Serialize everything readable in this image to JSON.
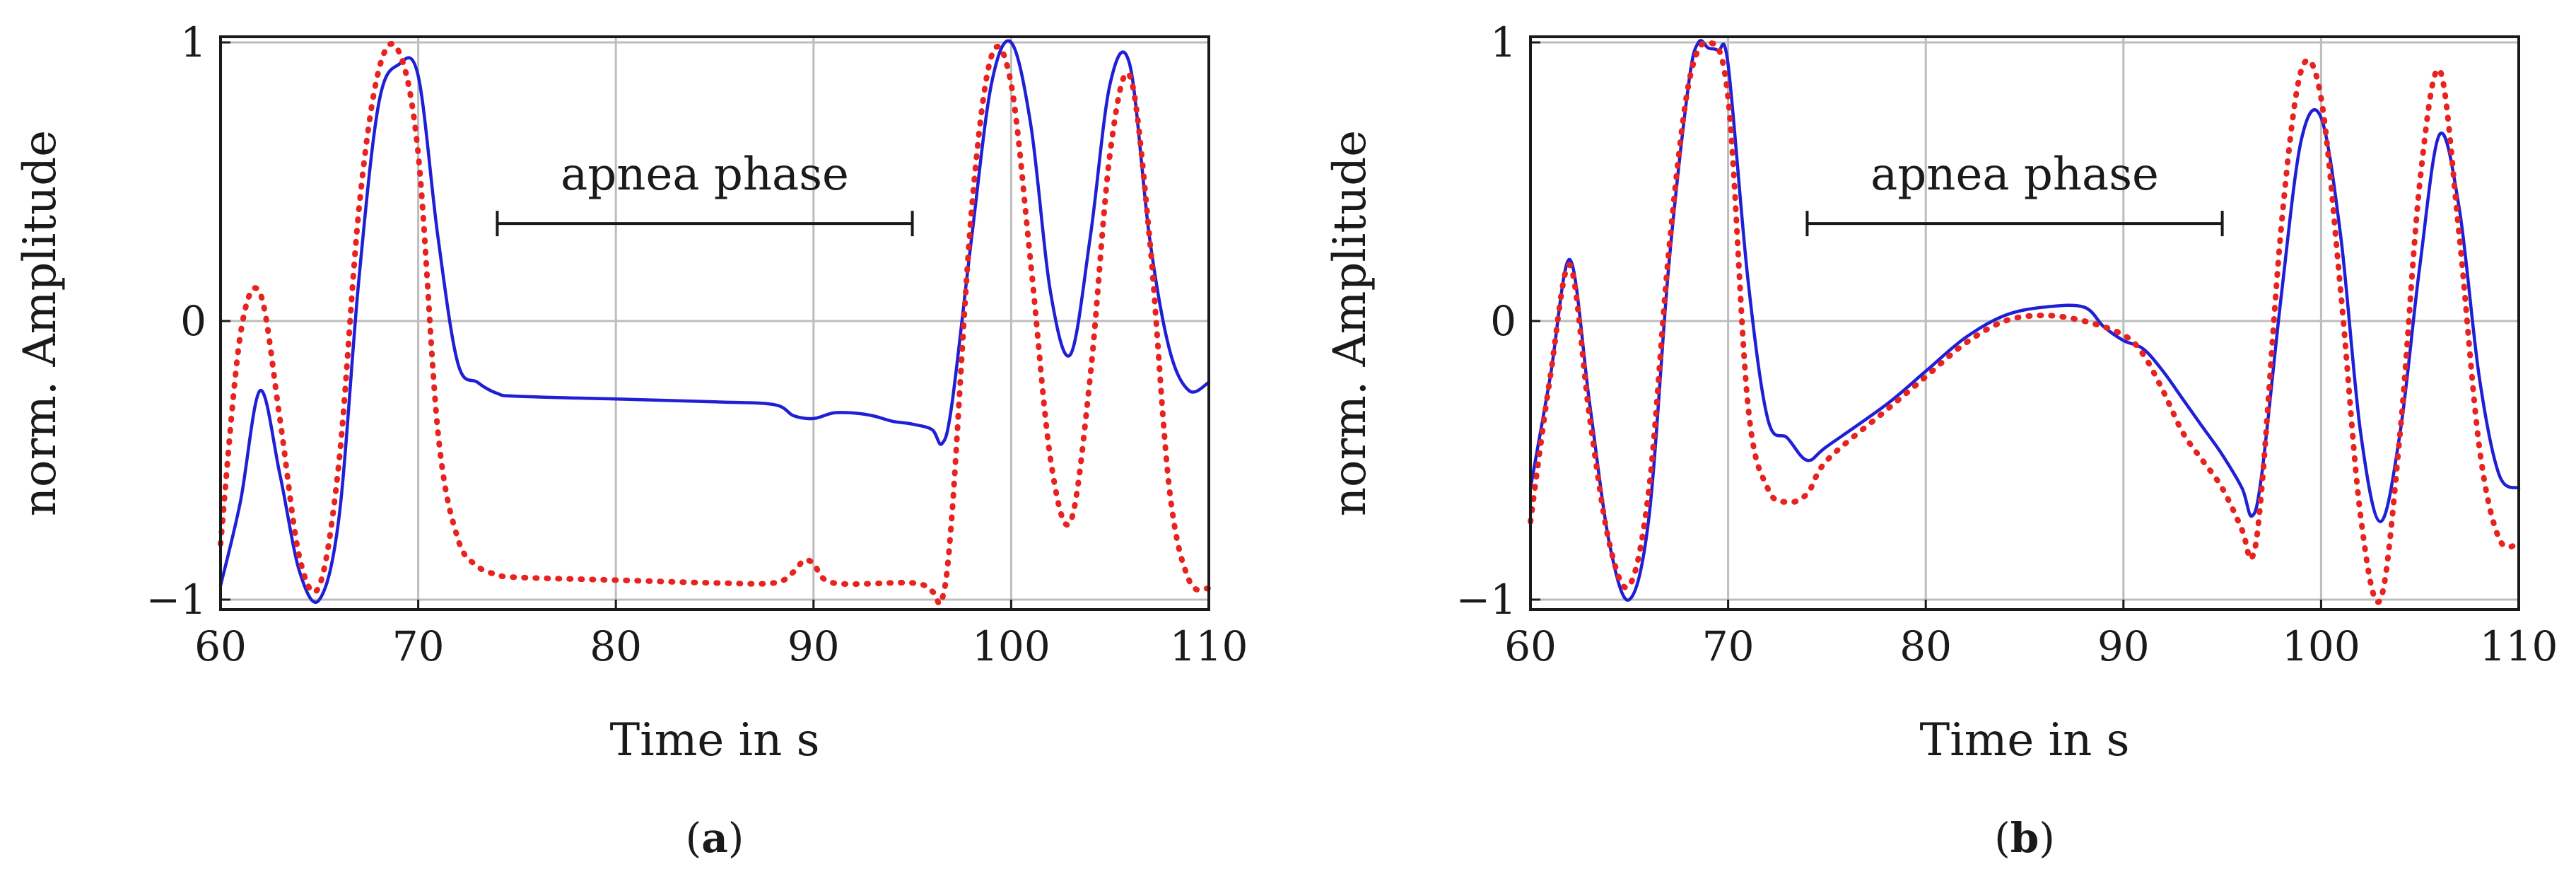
{
  "colors": {
    "series_solid": "#1f1fd6",
    "series_dotted": "#e8231f"
  },
  "chart_data": [
    {
      "type": "line",
      "panel_label": "a",
      "xlabel": "Time in s",
      "ylabel": "norm. Amplitude",
      "xlim": [
        60,
        110
      ],
      "ylim": [
        -1,
        1
      ],
      "xticks": [
        60,
        70,
        80,
        90,
        100,
        110
      ],
      "xtick_labels": [
        "60",
        "70",
        "80",
        "90",
        "100",
        "110"
      ],
      "yticks": [
        -1,
        0,
        1
      ],
      "ytick_labels": [
        "−1",
        "0",
        "1"
      ],
      "grid": true,
      "annotation": {
        "text": "apnea phase",
        "x_start": 74,
        "x_end": 95,
        "y": 0.35
      },
      "series": [
        {
          "name": "solid",
          "style": "solid",
          "x": [
            60,
            61,
            62,
            63,
            64,
            65,
            66,
            67,
            68,
            69,
            70,
            71,
            72,
            73,
            74,
            75,
            80,
            85,
            88,
            89,
            90,
            91,
            92,
            93,
            94,
            95,
            96,
            96.5,
            97,
            98,
            99,
            100,
            101,
            102,
            103,
            104,
            105,
            106,
            107,
            108,
            109,
            110
          ],
          "y": [
            -0.95,
            -0.65,
            -0.25,
            -0.55,
            -0.9,
            -1.0,
            -0.7,
            0.15,
            0.78,
            0.92,
            0.88,
            0.3,
            -0.15,
            -0.22,
            -0.26,
            -0.27,
            -0.28,
            -0.29,
            -0.3,
            -0.34,
            -0.35,
            -0.33,
            -0.33,
            -0.34,
            -0.36,
            -0.37,
            -0.39,
            -0.44,
            -0.3,
            0.3,
            0.85,
            1.0,
            0.7,
            0.1,
            -0.12,
            0.3,
            0.85,
            0.92,
            0.3,
            -0.1,
            -0.25,
            -0.22
          ]
        },
        {
          "name": "dotted",
          "style": "dotted",
          "x": [
            60,
            61,
            62,
            63,
            64,
            65,
            66,
            67,
            68,
            69,
            70,
            71,
            72,
            73,
            74,
            75,
            80,
            85,
            88,
            89,
            89.5,
            90,
            91,
            95,
            96,
            96.5,
            97,
            98,
            99,
            100,
            101,
            102,
            103,
            104,
            105,
            106,
            107,
            108,
            109,
            110
          ],
          "y": [
            -0.8,
            -0.05,
            0.1,
            -0.35,
            -0.85,
            -0.95,
            -0.5,
            0.4,
            0.9,
            0.97,
            0.6,
            -0.4,
            -0.78,
            -0.88,
            -0.91,
            -0.92,
            -0.93,
            -0.94,
            -0.94,
            -0.9,
            -0.86,
            -0.87,
            -0.94,
            -0.94,
            -0.97,
            -1.0,
            -0.7,
            0.4,
            0.95,
            0.85,
            0.2,
            -0.5,
            -0.72,
            -0.2,
            0.6,
            0.88,
            0.3,
            -0.6,
            -0.93,
            -0.96
          ]
        }
      ]
    },
    {
      "type": "line",
      "panel_label": "b",
      "xlabel": "Time in s",
      "ylabel": "norm. Amplitude",
      "xlim": [
        60,
        110
      ],
      "ylim": [
        -1,
        1
      ],
      "xticks": [
        60,
        70,
        80,
        90,
        100,
        110
      ],
      "xtick_labels": [
        "60",
        "70",
        "80",
        "90",
        "100",
        "110"
      ],
      "yticks": [
        -1,
        0,
        1
      ],
      "ytick_labels": [
        "−1",
        "0",
        "1"
      ],
      "grid": true,
      "annotation": {
        "text": "apnea phase",
        "x_start": 74,
        "x_end": 95,
        "y": 0.35
      },
      "series": [
        {
          "name": "solid",
          "style": "solid",
          "x": [
            60,
            61,
            62,
            63,
            64,
            65,
            66,
            67,
            68,
            68.5,
            69,
            69.5,
            70,
            71,
            72,
            73,
            74,
            75,
            78,
            80,
            82,
            84,
            86,
            88,
            89,
            90,
            91,
            92,
            93,
            94,
            95,
            96,
            96.5,
            97,
            98,
            99,
            100,
            101,
            102,
            103,
            104,
            105,
            106,
            107,
            108,
            109,
            110
          ],
          "y": [
            -0.6,
            -0.2,
            0.22,
            -0.3,
            -0.8,
            -1.0,
            -0.7,
            0.2,
            0.85,
            1.0,
            0.98,
            0.97,
            0.92,
            0.15,
            -0.35,
            -0.42,
            -0.5,
            -0.45,
            -0.3,
            -0.18,
            -0.06,
            0.02,
            0.05,
            0.05,
            -0.02,
            -0.07,
            -0.1,
            -0.18,
            -0.28,
            -0.38,
            -0.48,
            -0.6,
            -0.7,
            -0.55,
            0.1,
            0.65,
            0.73,
            0.3,
            -0.4,
            -0.72,
            -0.4,
            0.2,
            0.67,
            0.4,
            -0.2,
            -0.55,
            -0.6
          ]
        },
        {
          "name": "dotted",
          "style": "dotted",
          "x": [
            60,
            61,
            62,
            63,
            64,
            65,
            66,
            67,
            68,
            69,
            70,
            71,
            72,
            73,
            74,
            75,
            78,
            80,
            82,
            84,
            86,
            88,
            90,
            91,
            92,
            93,
            94,
            95,
            96,
            96.5,
            97,
            98,
            99,
            100,
            101,
            102,
            103,
            104,
            105,
            106,
            107,
            108,
            109,
            110
          ],
          "y": [
            -0.72,
            -0.2,
            0.2,
            -0.35,
            -0.8,
            -0.95,
            -0.6,
            0.25,
            0.85,
            1.0,
            0.8,
            -0.3,
            -0.6,
            -0.65,
            -0.62,
            -0.5,
            -0.32,
            -0.2,
            -0.08,
            0.0,
            0.02,
            0.0,
            -0.05,
            -0.12,
            -0.25,
            -0.4,
            -0.5,
            -0.6,
            -0.75,
            -0.85,
            -0.6,
            0.35,
            0.9,
            0.8,
            0.1,
            -0.7,
            -1.0,
            -0.4,
            0.5,
            0.9,
            0.3,
            -0.45,
            -0.78,
            -0.8
          ]
        }
      ]
    }
  ]
}
